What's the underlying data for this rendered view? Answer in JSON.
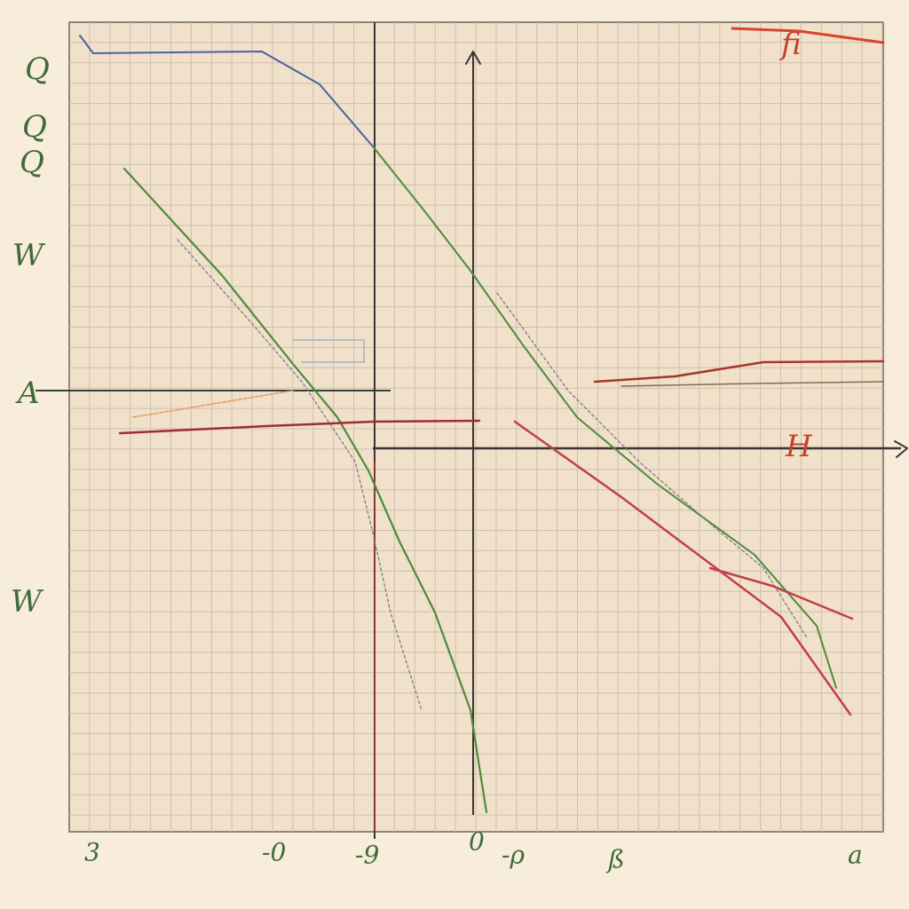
{
  "left_labels": [
    "Q",
    "Q",
    "Q",
    "W",
    "A",
    "W"
  ],
  "top_right_label": "fi",
  "right_label": "H",
  "bottom_labels": [
    "3",
    "-0",
    "-9",
    "0",
    "-ρ",
    "ß",
    "a"
  ]
}
